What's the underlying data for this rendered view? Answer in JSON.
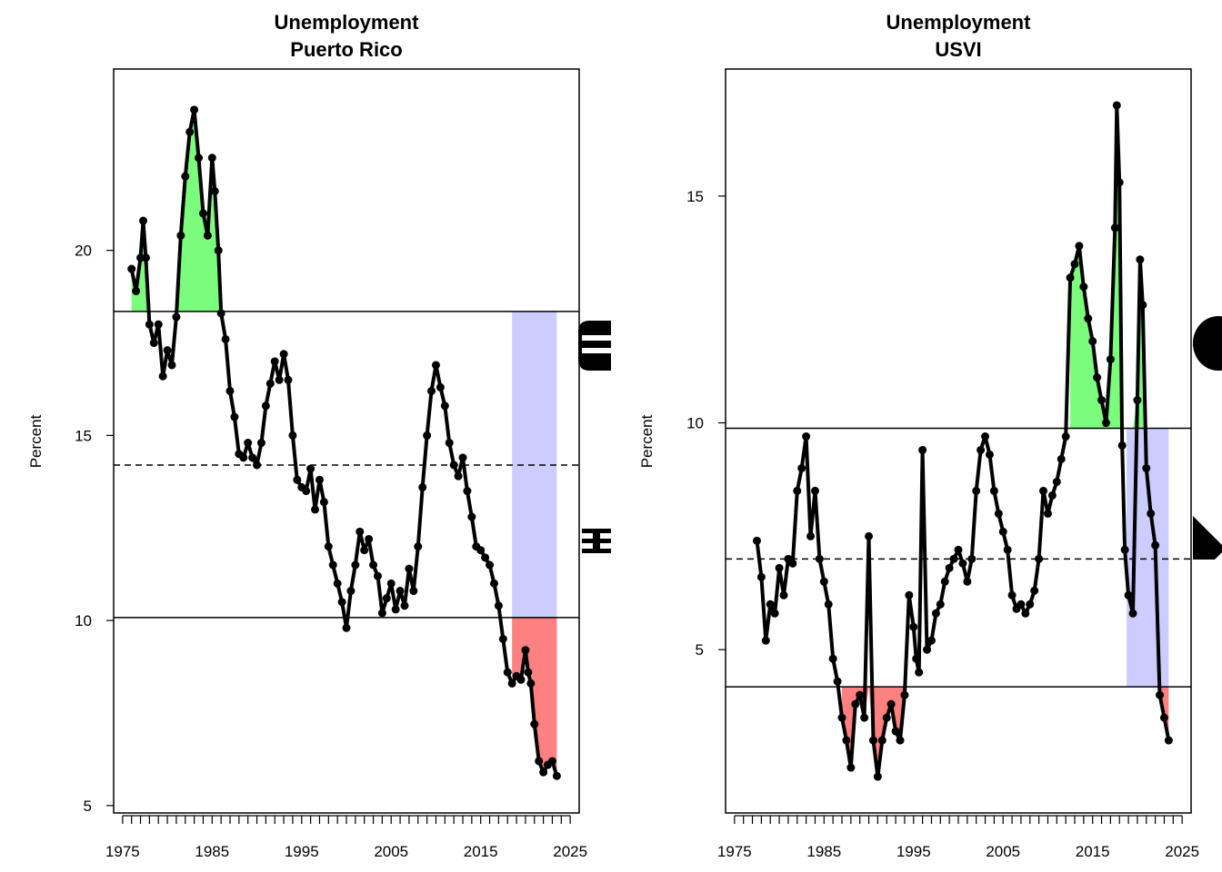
{
  "chart_data": [
    {
      "type": "line",
      "title": "Unemployment",
      "subtitle": "Puerto Rico",
      "xlabel": "",
      "ylabel": "Percent",
      "xlim": [
        1974,
        2026
      ],
      "ylim": [
        4.8,
        24.9
      ],
      "x_ticks": [
        1975,
        1985,
        1995,
        2005,
        2015,
        2025
      ],
      "y_ticks": [
        5,
        10,
        15,
        20
      ],
      "reference_lines": {
        "upper": 18.35,
        "mean": 14.2,
        "lower": 10.08
      },
      "shaded_regions": {
        "green": {
          "color": "#7CFC7C",
          "threshold": 18.35,
          "ranges": [
            [
              1976.0,
              1987.0
            ]
          ]
        },
        "red": {
          "color": "#FF8080",
          "threshold": 10.08,
          "ranges": [
            [
              2018.5,
              2023.5
            ]
          ]
        },
        "blue": {
          "color": "#CCCCFF",
          "x_range": [
            2018.5,
            2023.5
          ],
          "y_range": [
            10.08,
            18.35
          ]
        }
      },
      "series": [
        {
          "x": [
            1976.0,
            1976.5,
            1977.0,
            1977.3,
            1977.6,
            1978.0,
            1978.5,
            1979.0,
            1979.5,
            1980.0,
            1980.5,
            1981.0,
            1981.5,
            1982.0,
            1982.5,
            1983.0,
            1983.5,
            1984.0,
            1984.5,
            1985.0,
            1985.3,
            1985.7,
            1986.0,
            1986.5,
            1987.0,
            1987.5,
            1988.0,
            1988.5,
            1989.0,
            1989.5,
            1990.0,
            1990.5,
            1991.0,
            1991.5,
            1992.0,
            1992.5,
            1993.0,
            1993.5,
            1994.0,
            1994.5,
            1995.0,
            1995.5,
            1996.0,
            1996.5,
            1997.0,
            1997.5,
            1998.0,
            1998.5,
            1999.0,
            1999.5,
            2000.0,
            2000.5,
            2001.0,
            2001.5,
            2002.0,
            2002.5,
            2003.0,
            2003.5,
            2004.0,
            2004.5,
            2005.0,
            2005.5,
            2006.0,
            2006.5,
            2007.0,
            2007.5,
            2008.0,
            2008.5,
            2009.0,
            2009.5,
            2010.0,
            2010.5,
            2011.0,
            2011.5,
            2012.0,
            2012.5,
            2013.0,
            2013.5,
            2014.0,
            2014.5,
            2015.0,
            2015.5,
            2016.0,
            2016.5,
            2017.0,
            2017.5,
            2018.0,
            2018.5,
            2019.0,
            2019.5,
            2020.0,
            2020.3,
            2020.6,
            2021.0,
            2021.5,
            2022.0,
            2022.5,
            2023.0,
            2023.5
          ],
          "y": [
            19.5,
            18.9,
            19.8,
            20.8,
            19.8,
            18.0,
            17.5,
            18.0,
            16.6,
            17.3,
            16.9,
            18.2,
            20.4,
            22.0,
            23.2,
            23.8,
            22.5,
            21.0,
            20.4,
            22.5,
            21.6,
            20.0,
            18.3,
            17.6,
            16.2,
            15.5,
            14.5,
            14.4,
            14.8,
            14.4,
            14.2,
            14.8,
            15.8,
            16.4,
            17.0,
            16.5,
            17.2,
            16.5,
            15.0,
            13.8,
            13.6,
            13.5,
            14.1,
            13.0,
            13.8,
            13.2,
            12.0,
            11.5,
            11.0,
            10.5,
            9.8,
            10.8,
            11.5,
            12.4,
            11.9,
            12.2,
            11.5,
            11.2,
            10.2,
            10.6,
            11.0,
            10.3,
            10.8,
            10.4,
            11.4,
            10.8,
            12.0,
            13.6,
            15.0,
            16.2,
            16.9,
            16.3,
            15.8,
            14.8,
            14.2,
            13.9,
            14.4,
            13.5,
            12.8,
            12.0,
            11.9,
            11.7,
            11.5,
            11.0,
            10.4,
            9.5,
            8.6,
            8.3,
            8.5,
            8.4,
            9.2,
            8.6,
            8.3,
            7.2,
            6.2,
            5.9,
            6.1,
            6.2,
            5.8
          ]
        }
      ]
    },
    {
      "type": "line",
      "title": "Unemployment",
      "subtitle": "USVI",
      "xlabel": "",
      "ylabel": "Percent",
      "xlim": [
        1974,
        2026
      ],
      "ylim": [
        1.4,
        17.8
      ],
      "x_ticks": [
        1975,
        1985,
        1995,
        2005,
        2015,
        2025
      ],
      "y_ticks": [
        5,
        10,
        15
      ],
      "reference_lines": {
        "upper": 9.88,
        "mean": 7.0,
        "lower": 4.18
      },
      "shaded_regions": {
        "green": {
          "color": "#7CFC7C",
          "threshold": 9.88,
          "ranges": [
            [
              2012.3,
              2021.0
            ]
          ]
        },
        "red": {
          "color": "#FF8080",
          "threshold": 4.18,
          "ranges": [
            [
              1987.0,
              1994.0
            ],
            [
              2022.5,
              2023.5
            ]
          ]
        },
        "blue": {
          "color": "#CCCCFF",
          "x_range": [
            2018.8,
            2023.5
          ],
          "y_range": [
            4.18,
            9.88
          ]
        }
      },
      "series": [
        {
          "x": [
            1977.5,
            1978.0,
            1978.5,
            1979.0,
            1979.5,
            1980.0,
            1980.5,
            1981.0,
            1981.5,
            1982.0,
            1982.5,
            1983.0,
            1983.5,
            1984.0,
            1984.5,
            1985.0,
            1985.5,
            1986.0,
            1986.5,
            1987.0,
            1987.5,
            1988.0,
            1988.5,
            1989.0,
            1989.5,
            1990.0,
            1990.5,
            1991.0,
            1991.5,
            1992.0,
            1992.5,
            1993.0,
            1993.5,
            1994.0,
            1994.5,
            1995.0,
            1995.3,
            1995.6,
            1996.0,
            1996.5,
            1997.0,
            1997.5,
            1998.0,
            1998.5,
            1999.0,
            1999.5,
            2000.0,
            2000.5,
            2001.0,
            2001.5,
            2002.0,
            2002.5,
            2003.0,
            2003.5,
            2004.0,
            2004.5,
            2005.0,
            2005.5,
            2006.0,
            2006.5,
            2007.0,
            2007.5,
            2008.0,
            2008.5,
            2009.0,
            2009.5,
            2010.0,
            2010.5,
            2011.0,
            2011.5,
            2012.0,
            2012.5,
            2013.0,
            2013.5,
            2014.0,
            2014.5,
            2015.0,
            2015.5,
            2016.0,
            2016.5,
            2017.0,
            2017.5,
            2017.7,
            2018.0,
            2018.3,
            2018.6,
            2019.0,
            2019.5,
            2020.0,
            2020.3,
            2020.6,
            2021.0,
            2021.5,
            2022.0,
            2022.5,
            2023.0,
            2023.5
          ],
          "y": [
            7.4,
            6.6,
            5.2,
            6.0,
            5.8,
            6.8,
            6.2,
            7.0,
            6.9,
            8.5,
            9.0,
            9.7,
            7.5,
            8.5,
            7.0,
            6.5,
            6.0,
            4.8,
            4.3,
            3.5,
            3.0,
            2.4,
            3.8,
            4.0,
            3.5,
            7.5,
            3.0,
            2.2,
            3.0,
            3.5,
            3.8,
            3.2,
            3.0,
            4.0,
            6.2,
            5.5,
            4.8,
            4.5,
            9.4,
            5.0,
            5.2,
            5.8,
            6.0,
            6.5,
            6.8,
            7.0,
            7.2,
            6.9,
            6.5,
            7.0,
            8.5,
            9.4,
            9.7,
            9.3,
            8.5,
            8.0,
            7.6,
            7.2,
            6.2,
            5.9,
            6.0,
            5.8,
            6.0,
            6.3,
            7.0,
            8.5,
            8.0,
            8.4,
            8.7,
            9.2,
            9.7,
            13.2,
            13.5,
            13.9,
            13.0,
            12.3,
            11.8,
            11.0,
            10.5,
            10.0,
            11.4,
            14.3,
            17.0,
            15.3,
            9.5,
            7.2,
            6.2,
            5.8,
            10.5,
            13.6,
            12.6,
            9.0,
            8.0,
            7.3,
            4.0,
            3.5,
            3.0
          ]
        }
      ]
    }
  ]
}
